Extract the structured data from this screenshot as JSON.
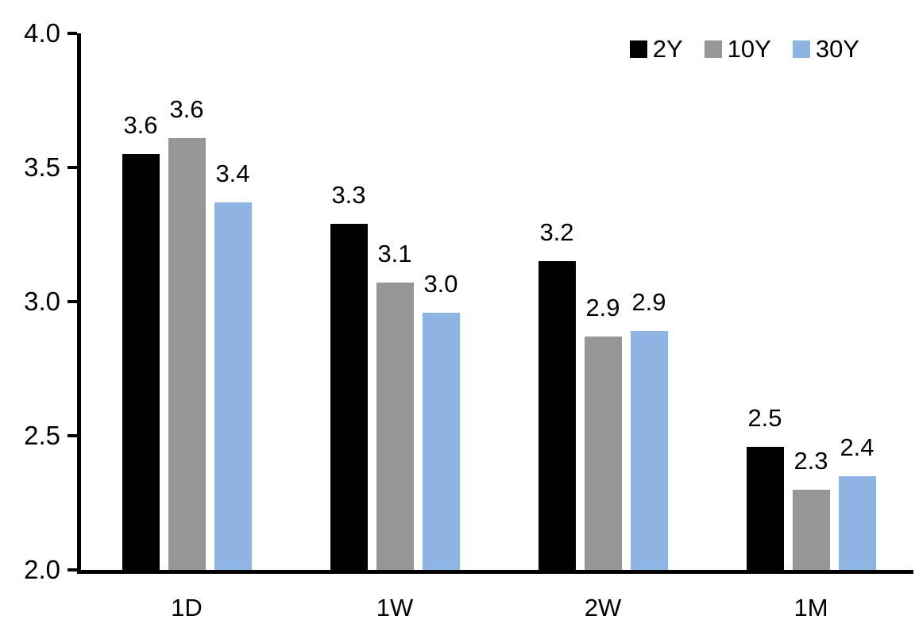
{
  "chart_data": {
    "type": "bar",
    "title": "",
    "xlabel": "",
    "ylabel": "",
    "categories": [
      "1D",
      "1W",
      "2W",
      "1M"
    ],
    "series": [
      {
        "name": "2Y",
        "color": "#000000",
        "values": [
          3.55,
          3.29,
          3.15,
          2.46
        ],
        "labels": [
          "3.6",
          "3.3",
          "3.2",
          "2.5"
        ]
      },
      {
        "name": "10Y",
        "color": "#969696",
        "values": [
          3.61,
          3.07,
          2.87,
          2.3
        ],
        "labels": [
          "3.6",
          "3.1",
          "2.9",
          "2.3"
        ]
      },
      {
        "name": "30Y",
        "color": "#8DB4E2",
        "values": [
          3.37,
          2.96,
          2.89,
          2.35
        ],
        "labels": [
          "3.4",
          "3.0",
          "2.9",
          "2.4"
        ]
      }
    ],
    "ylim": [
      2.0,
      4.0
    ],
    "yticks": [
      2.0,
      2.5,
      3.0,
      3.5,
      4.0
    ],
    "ytick_labels": [
      "2.0",
      "2.5",
      "3.0",
      "3.5",
      "4.0"
    ],
    "grid": false,
    "legend_position": "top-right",
    "axis_color": "#000000",
    "background": "#FFFFFF",
    "bar_value_labels_shown": true
  }
}
